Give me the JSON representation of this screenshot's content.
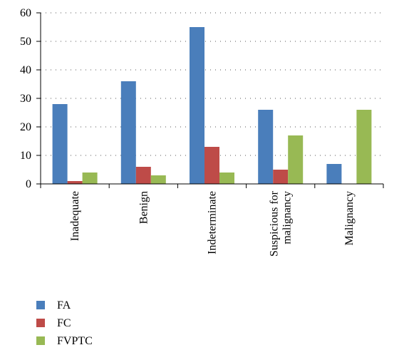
{
  "chart_data": {
    "type": "bar",
    "categories": [
      [
        "Inadequate"
      ],
      [
        "Benign"
      ],
      [
        "Indeterminate"
      ],
      [
        "Suspicious for",
        "malignancy"
      ],
      [
        "Malignancy"
      ]
    ],
    "series": [
      {
        "name": "FA",
        "color": "#4a7ebb",
        "values": [
          28,
          36,
          55,
          26,
          7
        ]
      },
      {
        "name": "FC",
        "color": "#be4b48",
        "values": [
          1,
          6,
          13,
          5,
          0
        ]
      },
      {
        "name": "FVPTC",
        "color": "#98b954",
        "values": [
          4,
          3,
          4,
          17,
          26
        ]
      }
    ],
    "ylim": [
      0,
      60
    ],
    "yticks": [
      0,
      10,
      20,
      30,
      40,
      50,
      60
    ],
    "grid": true,
    "legend": "bottom-left"
  }
}
